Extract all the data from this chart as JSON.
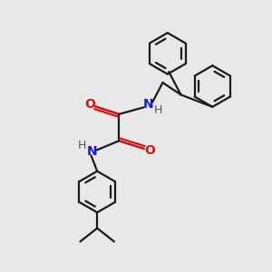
{
  "bg_color": "#e8e8e8",
  "bond_color": "#1a1a1a",
  "N_color": "#1a1acc",
  "O_color": "#cc1a1a",
  "H_color": "#555555",
  "line_width": 1.6,
  "font_size_atom": 10,
  "font_size_H": 9,
  "xlim": [
    0,
    10
  ],
  "ylim": [
    0,
    11
  ]
}
